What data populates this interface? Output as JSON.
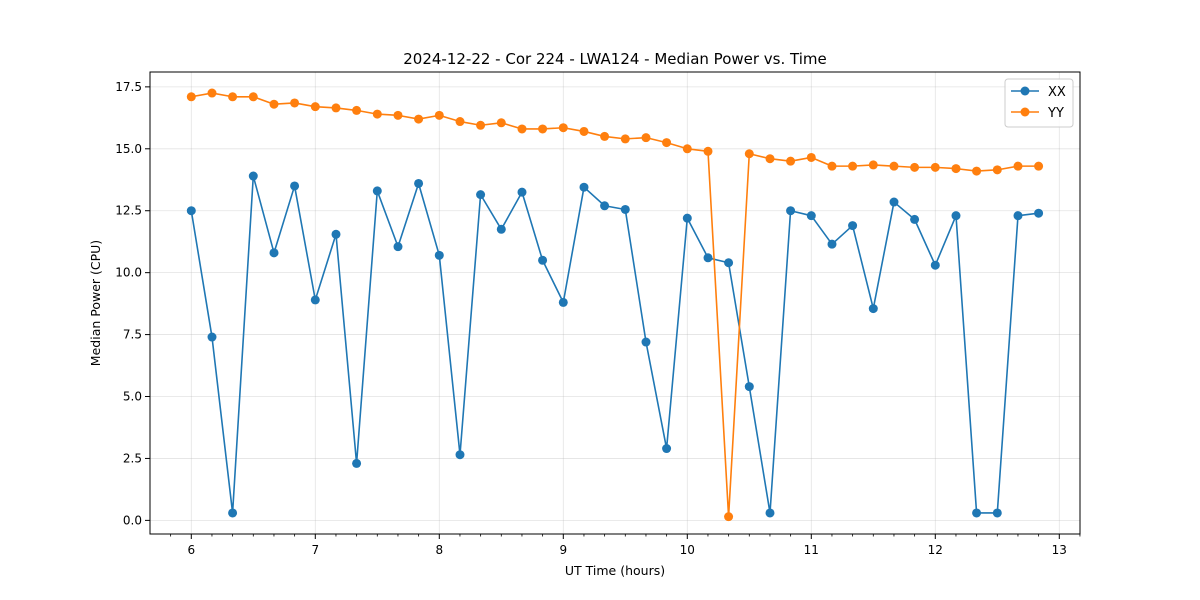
{
  "chart_data": {
    "type": "line",
    "title": "2024-12-22 - Cor 224 - LWA124 - Median Power vs. Time",
    "xlabel": "UT Time (hours)",
    "ylabel": "Median Power (CPU)",
    "xlim": [
      5.667,
      13.167
    ],
    "ylim": [
      -0.55,
      18.1
    ],
    "x_ticks": [
      6,
      7,
      8,
      9,
      10,
      11,
      12,
      13
    ],
    "x_tick_labels": [
      "6",
      "7",
      "8",
      "9",
      "10",
      "11",
      "12",
      "13"
    ],
    "y_ticks": [
      0,
      2.5,
      5,
      7.5,
      10,
      12.5,
      15,
      17.5
    ],
    "y_tick_labels": [
      "0.0",
      "2.5",
      "5.0",
      "7.5",
      "10.0",
      "12.5",
      "15.0",
      "17.5"
    ],
    "grid": true,
    "legend_position": "top-right",
    "x": [
      6.0,
      6.167,
      6.333,
      6.5,
      6.667,
      6.833,
      7.0,
      7.167,
      7.333,
      7.5,
      7.667,
      7.833,
      8.0,
      8.167,
      8.333,
      8.5,
      8.667,
      8.833,
      9.0,
      9.167,
      9.333,
      9.5,
      9.667,
      9.833,
      10.0,
      10.167,
      10.333,
      10.5,
      10.667,
      10.833,
      11.0,
      11.167,
      11.333,
      11.5,
      11.667,
      11.833,
      12.0,
      12.167,
      12.333,
      12.5,
      12.667,
      12.833
    ],
    "series": [
      {
        "name": "XX",
        "color": "#1f77b4",
        "values": [
          12.5,
          7.4,
          0.3,
          13.9,
          10.8,
          13.5,
          8.9,
          11.55,
          2.3,
          13.3,
          11.05,
          13.6,
          10.7,
          2.65,
          13.15,
          11.75,
          13.25,
          10.5,
          8.8,
          13.45,
          12.7,
          12.55,
          7.2,
          2.9,
          12.2,
          10.6,
          10.4,
          5.4,
          0.3,
          12.5,
          12.3,
          11.15,
          11.9,
          8.55,
          12.85,
          12.15,
          10.3,
          12.3,
          0.3,
          0.3,
          12.3,
          12.4
        ]
      },
      {
        "name": "YY",
        "color": "#ff7f0e",
        "values": [
          17.1,
          17.25,
          17.1,
          17.1,
          16.8,
          16.85,
          16.7,
          16.65,
          16.55,
          16.4,
          16.35,
          16.2,
          16.35,
          16.1,
          15.95,
          16.05,
          15.8,
          15.8,
          15.85,
          15.7,
          15.5,
          15.4,
          15.45,
          15.25,
          15.0,
          14.9,
          0.15,
          14.8,
          14.6,
          14.5,
          14.65,
          14.3,
          14.3,
          14.35,
          14.3,
          14.25,
          14.25,
          14.2,
          14.1,
          14.15,
          14.3,
          14.3
        ]
      }
    ]
  }
}
